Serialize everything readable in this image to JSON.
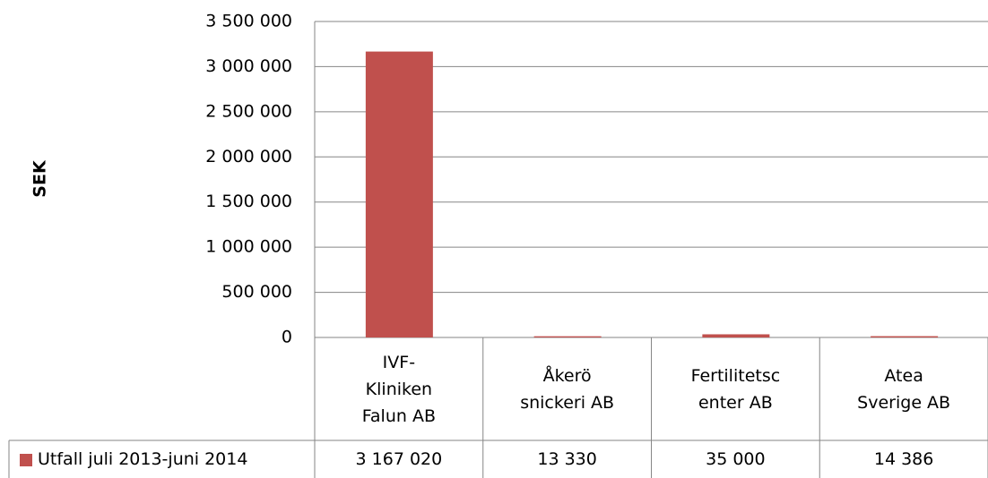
{
  "chart_data": {
    "type": "bar",
    "y_label": "SEK",
    "categories": [
      "IVF-Kliniken Falun AB",
      "Åkerö snickeri AB",
      "Fertilitetscenter AB",
      "Atea Sverige AB"
    ],
    "series": [
      {
        "name": "Utfall juli 2013-juni 2014",
        "color": "#c0504d",
        "values": [
          3167020,
          13330,
          35000,
          14386
        ],
        "value_labels": [
          "3 167 020",
          "13 330",
          "35 000",
          "14 386"
        ]
      }
    ],
    "ylim": [
      0,
      3500000
    ],
    "yticks": [
      0,
      {
        "value": 500000,
        "label": "500 000"
      },
      {
        "value": 1000000,
        "label": "1 000 000"
      },
      {
        "value": 1500000,
        "label": "1 500 000"
      },
      {
        "value": 2000000,
        "label": "2 000 000"
      },
      {
        "value": 2500000,
        "label": "2 500 000"
      },
      {
        "value": 3000000,
        "label": "3 000 000"
      },
      {
        "value": 3500000,
        "label": "3 500 000"
      }
    ],
    "grid": true
  }
}
